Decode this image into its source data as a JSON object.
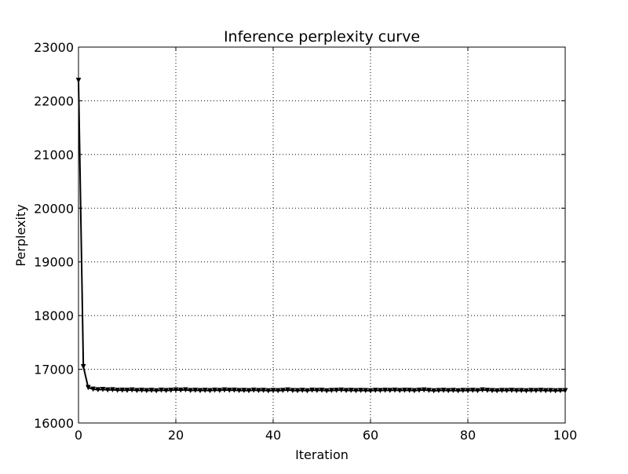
{
  "chart_data": {
    "type": "line",
    "title": "Inference perplexity curve",
    "xlabel": "Iteration",
    "ylabel": "Perplexity",
    "xlim": [
      0,
      100
    ],
    "ylim": [
      16000,
      23000
    ],
    "x_ticks": [
      0,
      20,
      40,
      60,
      80,
      100
    ],
    "y_ticks": [
      16000,
      17000,
      18000,
      19000,
      20000,
      21000,
      22000,
      23000
    ],
    "grid": true,
    "legend": "none",
    "line_color": "#000000",
    "marker": "triangle-down",
    "series": [
      {
        "x": [
          0,
          1,
          2,
          3,
          4,
          5,
          6,
          7,
          8,
          9,
          10,
          11,
          12,
          13,
          14,
          15,
          16,
          17,
          18,
          19,
          20,
          21,
          22,
          23,
          24,
          25,
          26,
          27,
          28,
          29,
          30,
          31,
          32,
          33,
          34,
          35,
          36,
          37,
          38,
          39,
          40,
          41,
          42,
          43,
          44,
          45,
          46,
          47,
          48,
          49,
          50,
          51,
          52,
          53,
          54,
          55,
          56,
          57,
          58,
          59,
          60,
          61,
          62,
          63,
          64,
          65,
          66,
          67,
          68,
          69,
          70,
          71,
          72,
          73,
          74,
          75,
          76,
          77,
          78,
          79,
          80,
          81,
          82,
          83,
          84,
          85,
          86,
          87,
          88,
          89,
          90,
          91,
          92,
          93,
          94,
          95,
          96,
          97,
          98,
          99,
          100
        ],
        "values": [
          22380,
          17050,
          16660,
          16630,
          16620,
          16625,
          16615,
          16620,
          16610,
          16612,
          16608,
          16615,
          16605,
          16610,
          16603,
          16608,
          16600,
          16612,
          16605,
          16610,
          16615,
          16612,
          16618,
          16605,
          16610,
          16604,
          16608,
          16603,
          16612,
          16606,
          16615,
          16610,
          16612,
          16605,
          16607,
          16602,
          16612,
          16605,
          16608,
          16600,
          16606,
          16602,
          16607,
          16615,
          16605,
          16602,
          16608,
          16600,
          16612,
          16606,
          16610,
          16600,
          16606,
          16608,
          16613,
          16605,
          16608,
          16603,
          16607,
          16605,
          16600,
          16608,
          16605,
          16610,
          16606,
          16612,
          16605,
          16610,
          16608,
          16602,
          16610,
          16615,
          16607,
          16600,
          16605,
          16608,
          16603,
          16607,
          16600,
          16606,
          16605,
          16608,
          16602,
          16615,
          16608,
          16604,
          16600,
          16606,
          16604,
          16608,
          16603,
          16605,
          16600,
          16606,
          16604,
          16608,
          16602,
          16605,
          16600,
          16603,
          16603
        ]
      }
    ]
  }
}
